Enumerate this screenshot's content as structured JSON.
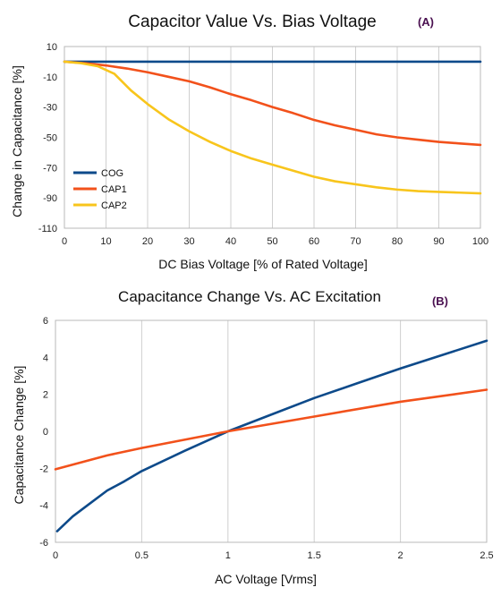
{
  "chart_data": [
    {
      "type": "line",
      "title": "Capacitor Value Vs. Bias Voltage",
      "panel_tag": "(A)",
      "xlabel": "DC Bias Voltage [% of Rated Voltage]",
      "ylabel": "Change in Capacitance [%]",
      "xlim": [
        0,
        100
      ],
      "ylim": [
        -110,
        10
      ],
      "x_ticks": [
        0,
        10,
        20,
        30,
        40,
        50,
        60,
        70,
        80,
        90,
        100
      ],
      "y_ticks": [
        10,
        -10,
        -30,
        -50,
        -70,
        -90,
        -110
      ],
      "grid": "vertical",
      "legend_position": "bottom-left",
      "series": [
        {
          "name": "COG",
          "color": "#0d4a8a",
          "x": [
            0,
            100
          ],
          "y": [
            0,
            0
          ]
        },
        {
          "name": "CAP1",
          "color": "#f2511b",
          "x": [
            0,
            5,
            10,
            15,
            20,
            25,
            30,
            35,
            40,
            45,
            50,
            55,
            60,
            65,
            70,
            75,
            80,
            85,
            90,
            95,
            100
          ],
          "y": [
            0,
            -1,
            -2.5,
            -4.5,
            -7,
            -10,
            -13,
            -17,
            -21.5,
            -25.5,
            -30,
            -34,
            -38.5,
            -42,
            -45,
            -48,
            -50,
            -51.5,
            -53,
            -54,
            -55
          ]
        },
        {
          "name": "CAP2",
          "color": "#f8c51c",
          "x": [
            0,
            4,
            8,
            12,
            16,
            20,
            25,
            30,
            35,
            40,
            45,
            50,
            55,
            60,
            65,
            70,
            75,
            80,
            85,
            90,
            95,
            100
          ],
          "y": [
            0,
            -1,
            -3,
            -8,
            -19,
            -28,
            -38,
            -46,
            -53,
            -59,
            -64,
            -68,
            -72,
            -76,
            -79,
            -81,
            -83,
            -84.5,
            -85.5,
            -86,
            -86.5,
            -87
          ]
        }
      ]
    },
    {
      "type": "line",
      "title": "Capacitance Change Vs. AC Excitation",
      "panel_tag": "(B)",
      "xlabel": "AC Voltage [Vrms]",
      "ylabel": "Capacitance Change [%]",
      "xlim": [
        0,
        2.5
      ],
      "ylim": [
        -6,
        6
      ],
      "x_ticks": [
        0,
        0.5,
        1,
        1.5,
        2,
        2.5
      ],
      "x_tick_labels": [
        "0",
        "0.5",
        "1",
        "1.5",
        "2",
        "2.5"
      ],
      "y_ticks": [
        6,
        4,
        2,
        0,
        -2,
        -4,
        -6
      ],
      "grid": "vertical",
      "series": [
        {
          "color": "#0d4a8a",
          "x": [
            0.01,
            0.1,
            0.2,
            0.3,
            0.4,
            0.5,
            0.75,
            1,
            1.25,
            1.5,
            1.75,
            2,
            2.25,
            2.5
          ],
          "y": [
            -5.4,
            -4.6,
            -3.9,
            -3.2,
            -2.7,
            -2.15,
            -1.05,
            0,
            0.9,
            1.8,
            2.6,
            3.4,
            4.15,
            4.9
          ]
        },
        {
          "color": "#f2511b",
          "x": [
            0,
            0.3,
            0.5,
            1,
            1.5,
            2,
            2.5
          ],
          "y": [
            -2.05,
            -1.3,
            -0.9,
            0,
            0.8,
            1.6,
            2.25
          ]
        }
      ]
    }
  ]
}
